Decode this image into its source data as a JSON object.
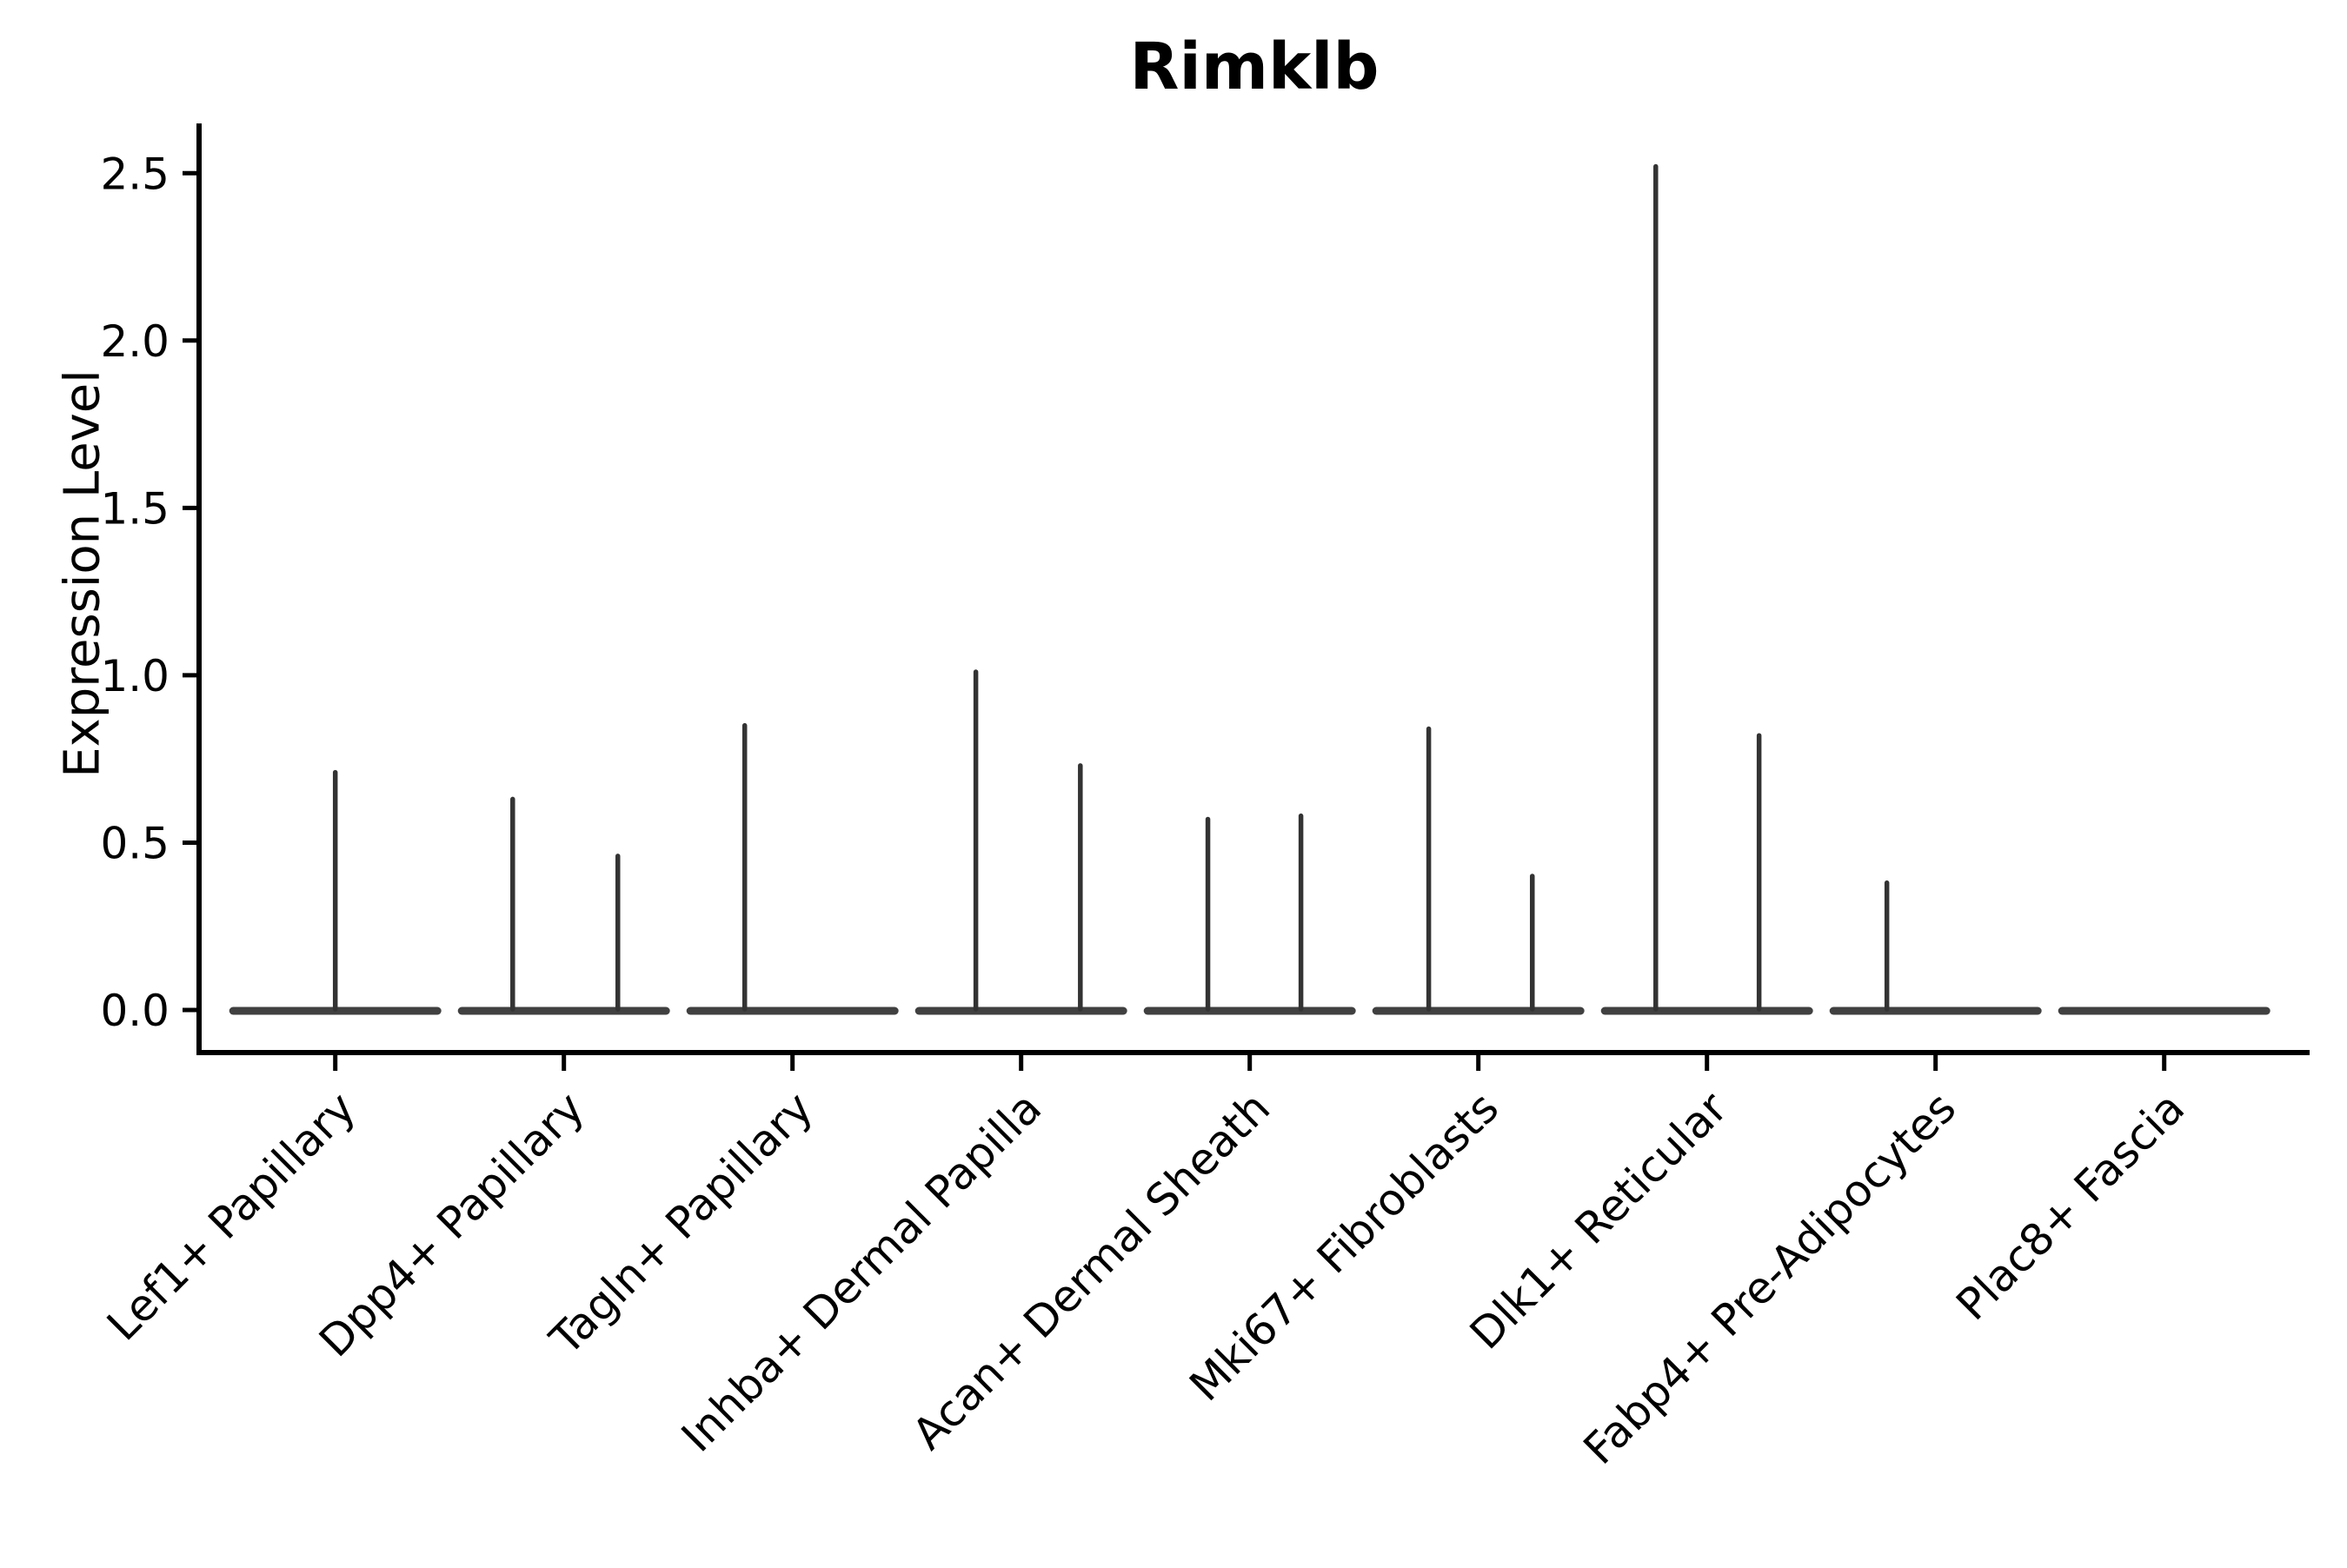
{
  "chart_data": {
    "type": "violin",
    "title": "Rimklb",
    "ylabel": "Expression Level",
    "xlabel": "",
    "ylim": [
      -0.13,
      2.65
    ],
    "yticks": [
      0,
      0.5,
      1.0,
      1.5,
      2.0,
      2.5
    ],
    "ytick_labels": [
      "0.0",
      "0.5",
      "1.0",
      "1.5",
      "2.0",
      "2.5"
    ],
    "grid": false,
    "legend": false,
    "x_tick_rotation": 45,
    "categories": [
      "Lef1+ Papillary",
      "Dpp4+ Papillary",
      "Tagln+ Papillary",
      "Inhba+ Dermal Papilla",
      "Acan+ Dermal Sheath",
      "Mki67+ Fibroblasts",
      "Dlk1+ Reticular",
      "Fabp4+ Pre-Adipocytes",
      "Plac8+ Fascia"
    ],
    "violins": [
      {
        "category": "Lef1+ Papillary",
        "base_value": 0.0,
        "spikes": [
          {
            "offset_frac": 0.0,
            "value": 0.71
          }
        ]
      },
      {
        "category": "Dpp4+ Papillary",
        "base_value": 0.0,
        "spikes": [
          {
            "offset_frac": -0.224,
            "value": 0.63
          },
          {
            "offset_frac": 0.236,
            "value": 0.46
          }
        ]
      },
      {
        "category": "Tagln+ Papillary",
        "base_value": 0.0,
        "spikes": [
          {
            "offset_frac": -0.209,
            "value": 0.85
          }
        ]
      },
      {
        "category": "Inhba+ Dermal Papilla",
        "base_value": 0.0,
        "spikes": [
          {
            "offset_frac": -0.198,
            "value": 1.01
          },
          {
            "offset_frac": 0.259,
            "value": 0.73
          }
        ]
      },
      {
        "category": "Acan+ Dermal Sheath",
        "base_value": 0.0,
        "spikes": [
          {
            "offset_frac": -0.183,
            "value": 0.57
          },
          {
            "offset_frac": 0.224,
            "value": 0.58
          }
        ]
      },
      {
        "category": "Mki67+ Fibroblasts",
        "base_value": 0.0,
        "spikes": [
          {
            "offset_frac": -0.217,
            "value": 0.84
          },
          {
            "offset_frac": 0.236,
            "value": 0.4
          }
        ]
      },
      {
        "category": "Dlk1+ Reticular",
        "base_value": 0.0,
        "spikes": [
          {
            "offset_frac": -0.224,
            "value": 2.52
          },
          {
            "offset_frac": 0.228,
            "value": 0.82
          }
        ]
      },
      {
        "category": "Fabp4+ Pre-Adipocytes",
        "base_value": 0.0,
        "spikes": [
          {
            "offset_frac": -0.213,
            "value": 0.38
          }
        ]
      },
      {
        "category": "Plac8+ Fascia",
        "base_value": 0.0,
        "spikes": []
      }
    ],
    "colors": {
      "spike": "#333333",
      "violin_body": "#404040",
      "axis": "#000000",
      "text": "#000000",
      "background": "#ffffff"
    }
  }
}
